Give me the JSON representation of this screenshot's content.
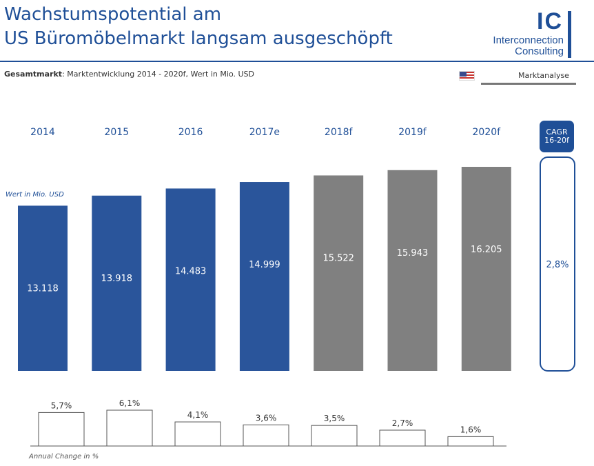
{
  "header": {
    "title_line1": "Wachstumspotential am",
    "title_line2": "US Büromöbelmarkt langsam ausgeschöpft",
    "logo_letters": "IC",
    "logo_line1": "Interconnection",
    "logo_line2": "Consulting",
    "subtitle_strong": "Gesamtmarkt",
    "subtitle_rest": ": Marktentwicklung 2014 - 2020f, Wert in Mio. USD",
    "section_label": "Marktanalyse",
    "flag_icon": "us-flag-icon"
  },
  "colors": {
    "actual": "#2a559b",
    "forecast": "#808080",
    "accent": "#1f4f97"
  },
  "cagr": {
    "label": "CAGR 16-20f",
    "value": "2,8%"
  },
  "chart_data": [
    {
      "type": "bar",
      "title": "Gesamtmarkt: Marktentwicklung 2014 - 2020f",
      "ylabel": "Wert in Mio. USD",
      "categories": [
        "2014",
        "2015",
        "2016",
        "2017e",
        "2018f",
        "2019f",
        "2020f"
      ],
      "values": [
        13118,
        13918,
        14483,
        14999,
        15522,
        15943,
        16205
      ],
      "value_labels": [
        "13.118",
        "13.918",
        "14.483",
        "14.999",
        "15.522",
        "15.943",
        "16.205"
      ],
      "forecast": [
        false,
        false,
        false,
        false,
        true,
        true,
        true
      ],
      "ylim": [
        0,
        16205
      ]
    },
    {
      "type": "bar",
      "title": "Annual Change in %",
      "xlabel": "Annual Change in %",
      "categories": [
        "2014",
        "2015",
        "2016",
        "2017e",
        "2018f",
        "2019f",
        "2020f"
      ],
      "values": [
        5.7,
        6.1,
        4.1,
        3.6,
        3.5,
        2.7,
        1.6
      ],
      "value_labels": [
        "5,7%",
        "6,1%",
        "4,1%",
        "3,6%",
        "3,5%",
        "2,7%",
        "1,6%"
      ],
      "ylim": [
        0,
        6.1
      ]
    }
  ]
}
